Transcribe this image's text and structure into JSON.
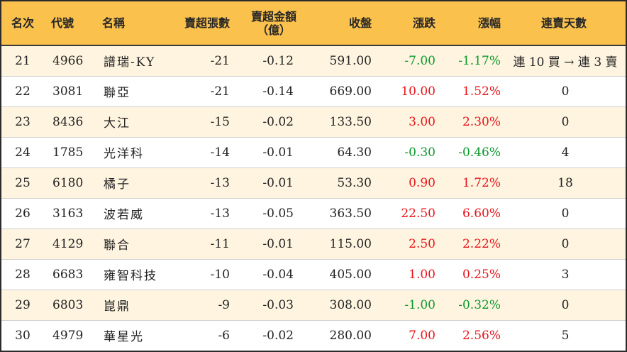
{
  "columns": {
    "rank": "名次",
    "code": "代號",
    "name": "名稱",
    "net_sell_lots": "賣超張數",
    "net_sell_amount_l1": "賣超金額",
    "net_sell_amount_l2": "（億）",
    "close": "收盤",
    "change": "漲跌",
    "change_pct": "漲幅",
    "streak": "連賣天數"
  },
  "rows": [
    {
      "rank": "21",
      "code": "4966",
      "name": "譜瑞-KY",
      "lots": "-21",
      "amount": "-0.12",
      "close": "591.00",
      "change": "-7.00",
      "pct": "-1.17%",
      "streak": "連 10 買 → 連 3 賣",
      "trend": "neg"
    },
    {
      "rank": "22",
      "code": "3081",
      "name": "聯亞",
      "lots": "-21",
      "amount": "-0.14",
      "close": "669.00",
      "change": "10.00",
      "pct": "1.52%",
      "streak": "0",
      "trend": "pos"
    },
    {
      "rank": "23",
      "code": "8436",
      "name": "大江",
      "lots": "-15",
      "amount": "-0.02",
      "close": "133.50",
      "change": "3.00",
      "pct": "2.30%",
      "streak": "0",
      "trend": "pos"
    },
    {
      "rank": "24",
      "code": "1785",
      "name": "光洋科",
      "lots": "-14",
      "amount": "-0.01",
      "close": "64.30",
      "change": "-0.30",
      "pct": "-0.46%",
      "streak": "4",
      "trend": "neg"
    },
    {
      "rank": "25",
      "code": "6180",
      "name": "橘子",
      "lots": "-13",
      "amount": "-0.01",
      "close": "53.30",
      "change": "0.90",
      "pct": "1.72%",
      "streak": "18",
      "trend": "pos"
    },
    {
      "rank": "26",
      "code": "3163",
      "name": "波若威",
      "lots": "-13",
      "amount": "-0.05",
      "close": "363.50",
      "change": "22.50",
      "pct": "6.60%",
      "streak": "0",
      "trend": "pos"
    },
    {
      "rank": "27",
      "code": "4129",
      "name": "聯合",
      "lots": "-11",
      "amount": "-0.01",
      "close": "115.00",
      "change": "2.50",
      "pct": "2.22%",
      "streak": "0",
      "trend": "pos"
    },
    {
      "rank": "28",
      "code": "6683",
      "name": "雍智科技",
      "lots": "-10",
      "amount": "-0.04",
      "close": "405.00",
      "change": "1.00",
      "pct": "0.25%",
      "streak": "3",
      "trend": "pos"
    },
    {
      "rank": "29",
      "code": "6803",
      "name": "崑鼎",
      "lots": "-9",
      "amount": "-0.03",
      "close": "308.00",
      "change": "-1.00",
      "pct": "-0.32%",
      "streak": "0",
      "trend": "neg"
    },
    {
      "rank": "30",
      "code": "4979",
      "name": "華星光",
      "lots": "-6",
      "amount": "-0.02",
      "close": "280.00",
      "change": "7.00",
      "pct": "2.56%",
      "streak": "5",
      "trend": "pos"
    }
  ],
  "colors": {
    "header_bg": "#fbc14d",
    "row_alt_bg": "#fff4e0",
    "up": "#e8141b",
    "down": "#0a9a2b"
  }
}
